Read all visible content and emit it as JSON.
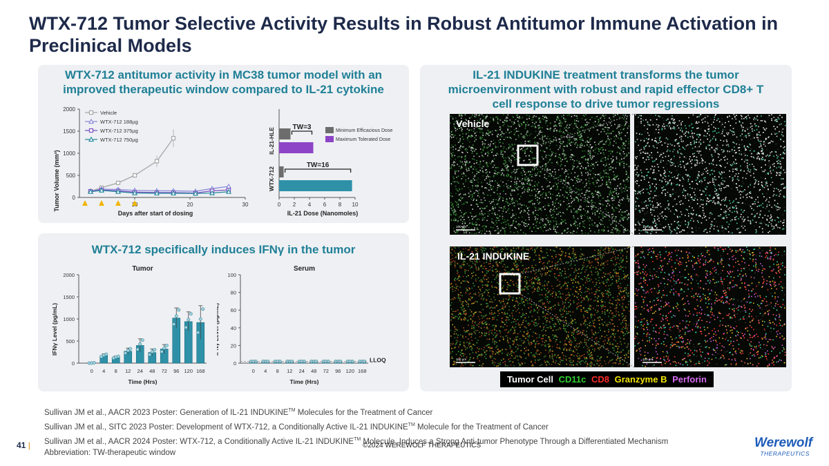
{
  "slide": {
    "title": "WTX-712 Tumor Selective Activity Results in Robust Antitumor Immune Activation in Preclinical Models",
    "page_number": "41",
    "copyright": "©2024 WEREWOLF THERAPEUTICS",
    "logo_line1": "Werewolf",
    "logo_line2": "THERAPEUTICS"
  },
  "panels": {
    "top_left_title": "WTX-712 antitumor activity in MC38 tumor model with an improved therapeutic window compared to IL-21 cytokine",
    "bottom_left_title": "WTX-712 specifically induces IFNγ in the tumor",
    "right_title": "IL-21 INDUKINE treatment transforms the tumor microenvironment with robust and rapid effector CD8+ T cell response to drive tumor regressions"
  },
  "microscopy": {
    "top_label": "Vehicle",
    "bottom_label": "IL-21 INDUKINE",
    "scale_label": "100 µm",
    "legend": [
      {
        "text": "Tumor Cell",
        "color": "#ffffff"
      },
      {
        "text": "CD11c",
        "color": "#2fd12f"
      },
      {
        "text": "CD8",
        "color": "#ff2a2a"
      },
      {
        "text": "Granzyme B",
        "color": "#f2e600"
      },
      {
        "text": "Perforin",
        "color": "#d46bf0"
      }
    ]
  },
  "references": [
    {
      "pre": "Sullivan JM et al., AACR 2023 Poster: Generation of IL-21 INDUKINE",
      "sup": "TM",
      "post": " Molecules for the Treatment of Cancer"
    },
    {
      "pre": "Sullivan JM et al., SITC 2023 Poster: Development of WTX-712, a Conditionally Active IL-21 INDUKINE",
      "sup": "TM",
      "post": " Molecule for the Treatment of Cancer"
    },
    {
      "pre": "Sullivan JM et al., AACR 2024 Poster: WTX-712, a Conditionally Active IL-21 INDUKINE",
      "sup": "TM",
      "post": " Molecule, Induces a Strong Anti-tumor Phenotype Through a Differentiated Mechanism"
    },
    {
      "pre": "Abbreviation:  TW-therapeutic window",
      "sup": "",
      "post": ""
    }
  ],
  "chart_data": [
    {
      "type": "line",
      "xlabel": "Days after start of dosing",
      "ylabel": "Tumor Volume (mm³)",
      "xlim": [
        0,
        30
      ],
      "ylim": [
        0,
        2000
      ],
      "xticks": [
        10,
        20,
        30
      ],
      "yticks": [
        0,
        500,
        1000,
        1500,
        2000
      ],
      "dosing_days": [
        1,
        4,
        7,
        10
      ],
      "legend_position": "top-left",
      "series": [
        {
          "name": "Vehicle",
          "color": "#a6a6a6",
          "marker": "square",
          "x": [
            2,
            4,
            7,
            10,
            14,
            17
          ],
          "y": [
            140,
            220,
            330,
            500,
            820,
            1340
          ],
          "err": [
            15,
            25,
            35,
            50,
            130,
            200
          ]
        },
        {
          "name": "WTX-712 188µg",
          "color": "#8a8adc",
          "marker": "triangle",
          "x": [
            2,
            4,
            7,
            10,
            14,
            17,
            21,
            24,
            27
          ],
          "y": [
            140,
            190,
            180,
            160,
            150,
            150,
            140,
            200,
            250
          ],
          "err": [
            10,
            15,
            20,
            20,
            20,
            25,
            25,
            35,
            50
          ]
        },
        {
          "name": "WTX-712 375µg",
          "color": "#7a4fc0",
          "marker": "square",
          "x": [
            2,
            4,
            7,
            10,
            14,
            17,
            21,
            24,
            27
          ],
          "y": [
            140,
            170,
            150,
            120,
            110,
            110,
            100,
            150,
            170
          ],
          "err": [
            10,
            15,
            15,
            15,
            15,
            20,
            20,
            30,
            40
          ]
        },
        {
          "name": "WTX-712 750µg",
          "color": "#2a8aa0",
          "marker": "triangle",
          "x": [
            2,
            4,
            7,
            10,
            14,
            17,
            21,
            24,
            27
          ],
          "y": [
            130,
            160,
            130,
            100,
            95,
            95,
            90,
            100,
            130
          ],
          "err": [
            10,
            10,
            10,
            10,
            10,
            15,
            15,
            20,
            25
          ]
        }
      ]
    },
    {
      "type": "bar",
      "xlabel": "IL-21 Dose (Nanomoles)",
      "xlim": [
        0,
        10
      ],
      "xticks": [
        0,
        2,
        4,
        6,
        8,
        10
      ],
      "categories": [
        "IL-21-HLE",
        "WTX-712"
      ],
      "series": [
        {
          "name": "Minimum Efficacious Dose",
          "color": "#6d6d6d",
          "values": [
            1.5,
            0.6
          ]
        },
        {
          "name": "Maximum Tolerated Dose",
          "color": "#8e44c6",
          "values": [
            4.5,
            9.6
          ]
        }
      ],
      "series_colors_by_category": {
        "IL-21-HLE": [
          "#6d6d6d",
          "#8e44c6"
        ],
        "WTX-712": [
          "#6d6d6d",
          "#2e91a8"
        ]
      },
      "annotations": [
        "TW=3",
        "TW=16"
      ]
    },
    {
      "type": "bar",
      "title": "Tumor",
      "xlabel": "Time (Hrs)",
      "ylabel": "IFNγ Level (pg/mL)",
      "categories": [
        "0",
        "4",
        "8",
        "12",
        "24",
        "48",
        "72",
        "96",
        "120",
        "168"
      ],
      "values": [
        0,
        170,
        130,
        270,
        400,
        240,
        320,
        1020,
        940,
        920
      ],
      "err": [
        10,
        40,
        30,
        70,
        150,
        80,
        100,
        230,
        220,
        380
      ],
      "ylim": [
        0,
        2000
      ],
      "yticks": [
        0,
        500,
        1000,
        1500,
        2000
      ],
      "color": "#2e91a8"
    },
    {
      "type": "bar",
      "title": "Serum",
      "xlabel": "Time (Hrs)",
      "ylabel": "IFNγ Level (pg/mL)",
      "categories": [
        "0",
        "4",
        "8",
        "12",
        "24",
        "48",
        "72",
        "96",
        "120",
        "168"
      ],
      "values": [
        2,
        2,
        2,
        2,
        2,
        2,
        2,
        2,
        2,
        2
      ],
      "ylim": [
        0,
        100
      ],
      "yticks": [
        0,
        20,
        40,
        60,
        80,
        100
      ],
      "annotation": "LLOQ",
      "color": "#2e91a8"
    }
  ]
}
